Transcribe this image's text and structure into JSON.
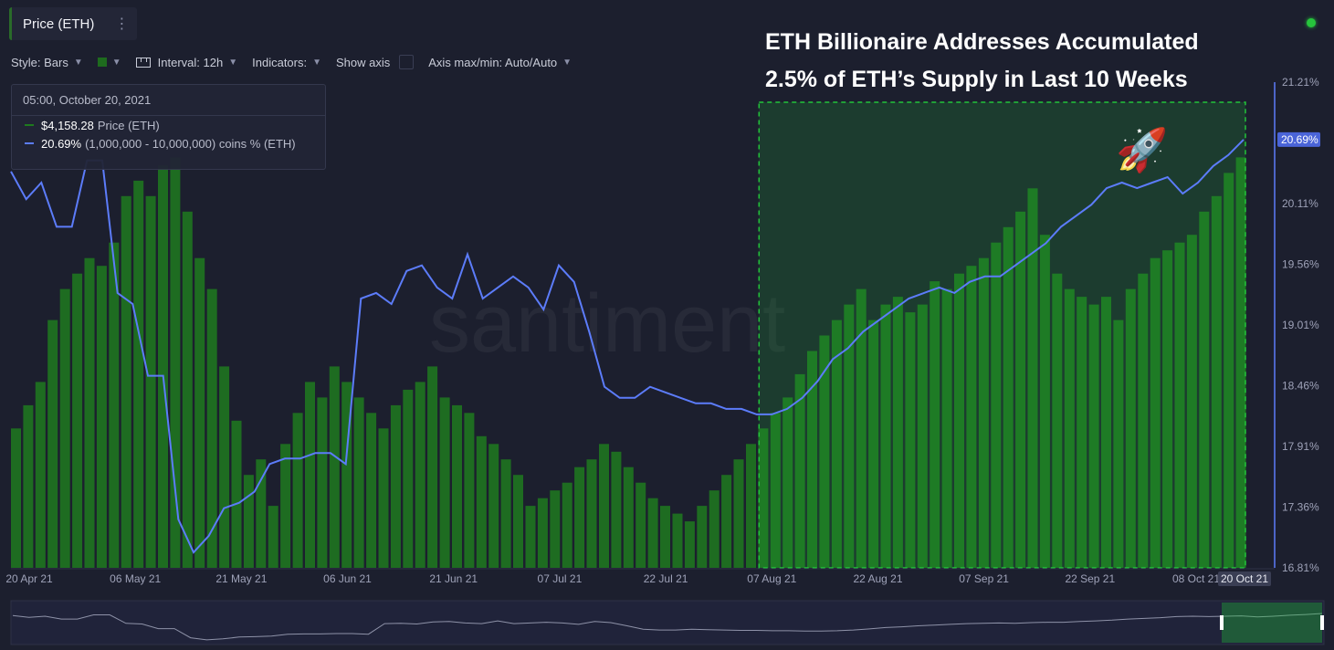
{
  "tab": {
    "label": "Price (ETH)",
    "menu_icon": "kebab-icon"
  },
  "toolbar": {
    "style_label": "Style: Bars",
    "interval_label": "Interval: 12h",
    "indicators_label": "Indicators:",
    "show_axis_label": "Show axis",
    "axis_label": "Axis max/min: Auto/Auto",
    "swatch_color": "#1e6b1e"
  },
  "headline": {
    "line1": "ETH Billionaire Addresses Accumulated",
    "line2": "2.5% of ETH’s Supply in Last 10 Weeks"
  },
  "tooltip": {
    "date": "05:00, October 20, 2021",
    "price_value": "$4,158.28",
    "price_name": "Price (ETH)",
    "supply_value": "20.69%",
    "supply_name": "(1,000,000 - 10,000,000) coins % (ETH)"
  },
  "watermark": "santiment",
  "chart_data": {
    "type": "bar",
    "x_ticks": [
      "20 Apr 21",
      "06 May 21",
      "21 May 21",
      "06 Jun 21",
      "21 Jun 21",
      "07 Jul 21",
      "22 Jul 21",
      "07 Aug 21",
      "22 Aug 21",
      "07 Sep 21",
      "22 Sep 21",
      "08 Oct 21"
    ],
    "current_x_label": "20 Oct 21",
    "y_right_ticks": [
      "21.21%",
      "20.11%",
      "19.56%",
      "19.01%",
      "18.46%",
      "17.91%",
      "17.36%",
      "16.81%"
    ],
    "current_y_label": "20.69%",
    "ylim_supply_pct": [
      16.81,
      21.21
    ],
    "series": [
      {
        "name": "Price (ETH)",
        "render": "bars",
        "color": "#1e7a1e",
        "unit": "USD",
        "values": [
          2400,
          2550,
          2700,
          3100,
          3300,
          3400,
          3500,
          3450,
          3600,
          3900,
          4000,
          3900,
          4100,
          4150,
          3800,
          3500,
          3300,
          2800,
          2450,
          2100,
          2200,
          1900,
          2300,
          2500,
          2700,
          2600,
          2800,
          2700,
          2600,
          2500,
          2400,
          2550,
          2650,
          2700,
          2800,
          2600,
          2550,
          2500,
          2350,
          2300,
          2200,
          2100,
          1900,
          1950,
          2000,
          2050,
          2150,
          2200,
          2300,
          2250,
          2150,
          2050,
          1950,
          1900,
          1850,
          1800,
          1900,
          2000,
          2100,
          2200,
          2300,
          2400,
          2500,
          2600,
          2750,
          2900,
          3000,
          3100,
          3200,
          3300,
          3100,
          3200,
          3250,
          3150,
          3200,
          3350,
          3300,
          3400,
          3450,
          3500,
          3600,
          3700,
          3800,
          3950,
          3650,
          3400,
          3300,
          3250,
          3200,
          3250,
          3100,
          3300,
          3400,
          3500,
          3550,
          3600,
          3650,
          3800,
          3900,
          4050,
          4150
        ]
      },
      {
        "name": "(1,000,000 - 10,000,000) coins % (ETH)",
        "render": "line",
        "color": "#5c7cfa",
        "unit": "%",
        "values": [
          20.4,
          20.15,
          20.3,
          19.9,
          19.9,
          20.5,
          20.5,
          19.3,
          19.2,
          18.55,
          18.55,
          17.25,
          16.95,
          17.1,
          17.35,
          17.4,
          17.5,
          17.75,
          17.8,
          17.8,
          17.85,
          17.85,
          17.75,
          19.25,
          19.3,
          19.2,
          19.5,
          19.55,
          19.35,
          19.25,
          19.65,
          19.25,
          19.35,
          19.45,
          19.35,
          19.15,
          19.55,
          19.4,
          18.95,
          18.45,
          18.35,
          18.35,
          18.45,
          18.4,
          18.35,
          18.3,
          18.3,
          18.25,
          18.25,
          18.2,
          18.2,
          18.25,
          18.35,
          18.5,
          18.7,
          18.8,
          18.95,
          19.05,
          19.15,
          19.25,
          19.3,
          19.35,
          19.3,
          19.4,
          19.45,
          19.45,
          19.55,
          19.65,
          19.75,
          19.9,
          20.0,
          20.1,
          20.25,
          20.3,
          20.25,
          20.3,
          20.35,
          20.2,
          20.3,
          20.45,
          20.55,
          20.69
        ]
      }
    ],
    "highlight_region": {
      "from": "07 Aug 21",
      "to": "20 Oct 21",
      "color": "#22c43a"
    },
    "grid": false,
    "legend": "tooltip top-left"
  }
}
